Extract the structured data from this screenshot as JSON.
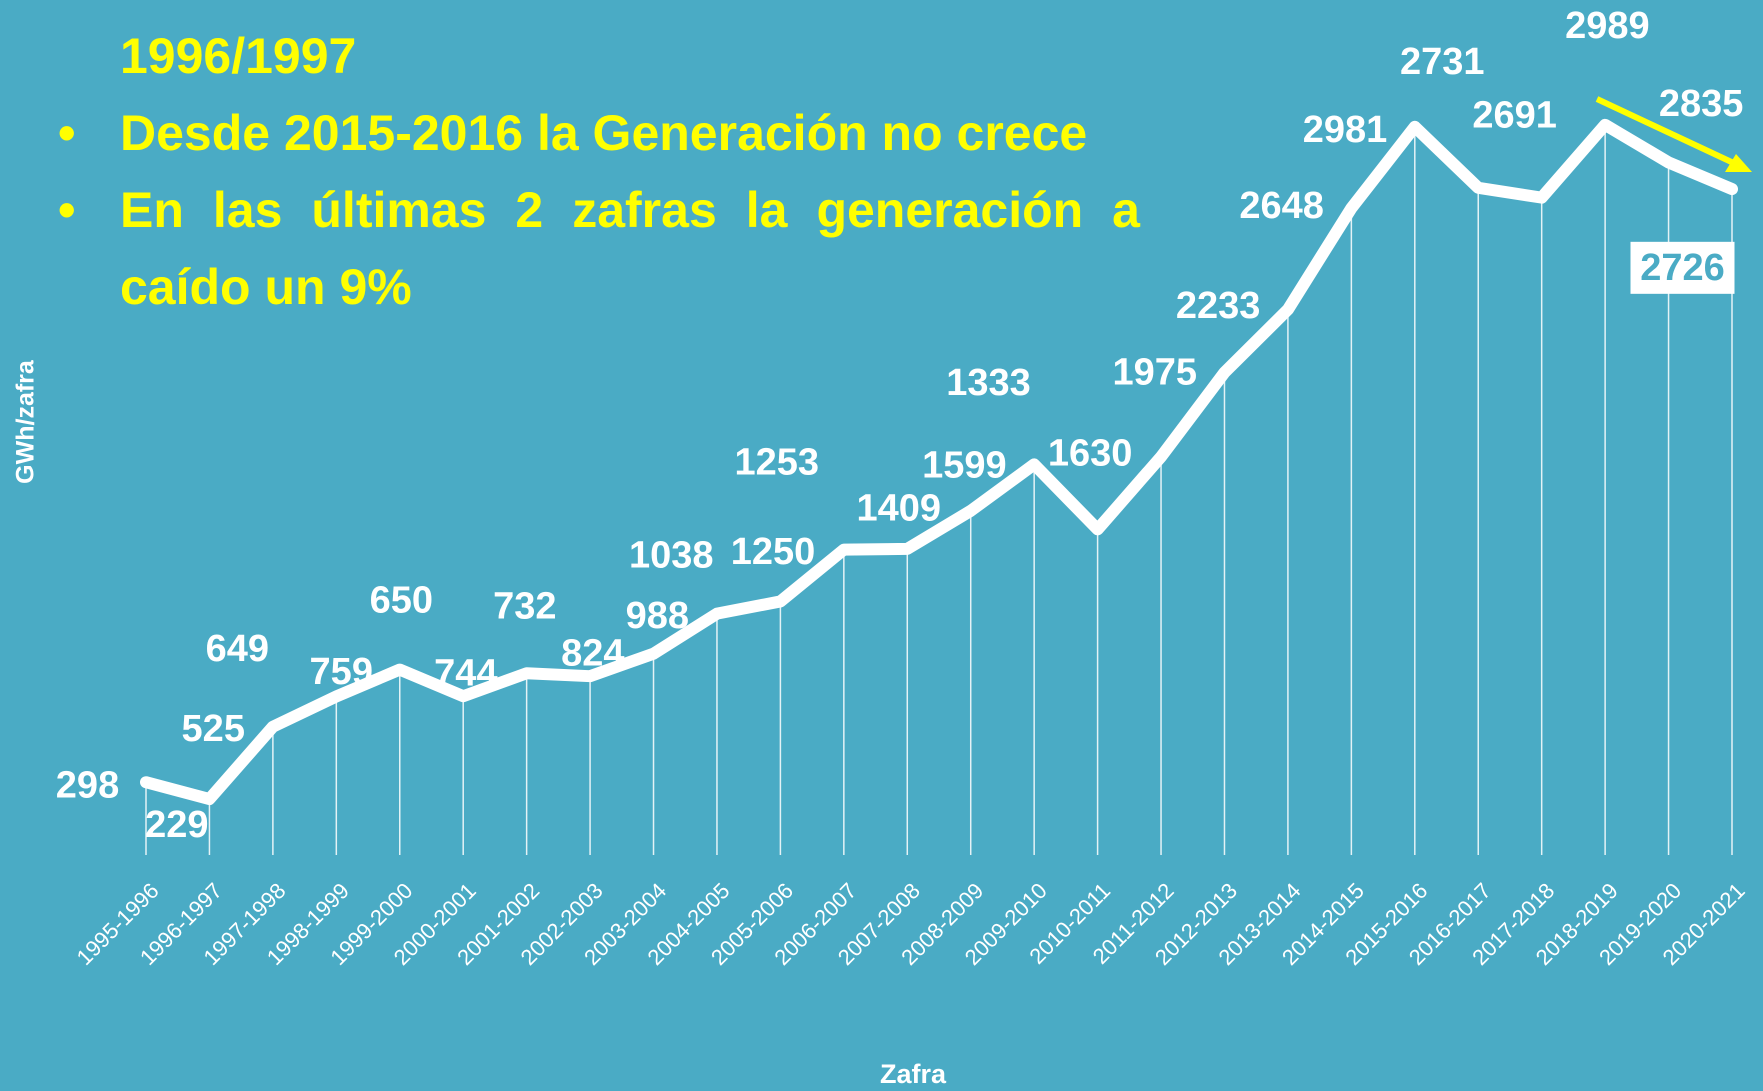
{
  "chart_data": {
    "type": "line",
    "x_label": "Zafra",
    "y_label": "GWh/zafra",
    "categories": [
      "1995-1996",
      "1996-1997",
      "1997-1998",
      "1998-1999",
      "1999-2000",
      "2000-2001",
      "2001-2002",
      "2002-2003",
      "2003-2004",
      "2004-2005",
      "2005-2006",
      "2006-2007",
      "2007-2008",
      "2008-2009",
      "2009-2010",
      "2010-2011",
      "2011-2012",
      "2012-2013",
      "2013-2014",
      "2014-2015",
      "2015-2016",
      "2016-2017",
      "2017-2018",
      "2018-2019",
      "2019-2020",
      "2020-2021"
    ],
    "values": [
      298,
      229,
      525,
      649,
      759,
      650,
      744,
      732,
      824,
      988,
      1038,
      1250,
      1253,
      1409,
      1599,
      1333,
      1630,
      1975,
      2233,
      2648,
      2981,
      2731,
      2691,
      2989,
      2835,
      2726
    ],
    "color": "#ffffff",
    "ylim": [
      0,
      3500
    ]
  },
  "notes": {
    "continuation": "1996/1997",
    "bullets": [
      "Desde 2015-2016 la Generación no crece",
      "En las últimas 2 zafras la generación a caído un 9%"
    ]
  }
}
